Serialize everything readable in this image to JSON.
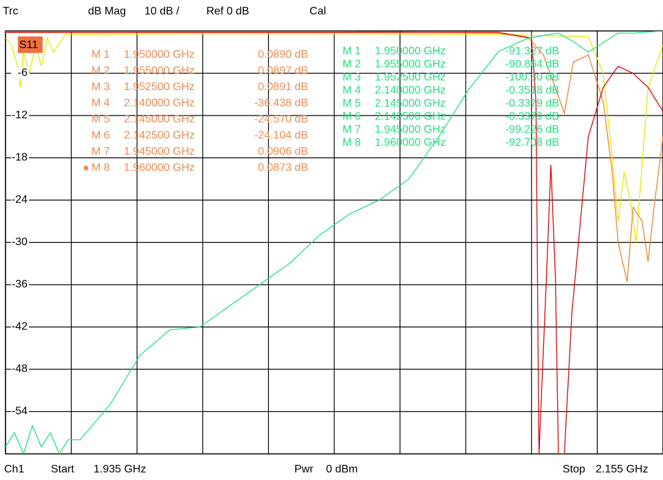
{
  "chart_data": {
    "type": "line",
    "header": [
      "Trc",
      "dB Mag",
      "10 dB /",
      "Ref 0 dB",
      "Cal"
    ],
    "trace_label": "S11",
    "footer": [
      "Ch1",
      "Start",
      "1.935 GHz",
      "Pwr",
      "0 dBm",
      "Stop",
      "2.155 GHz"
    ],
    "xlim": [
      1.935,
      2.155
    ],
    "xticks": [
      1.935,
      1.957,
      1.979,
      2.001,
      2.023,
      2.045,
      2.067,
      2.089,
      2.111,
      2.133,
      2.155
    ],
    "ylim": [
      -60,
      0
    ],
    "yticks": [
      -54,
      -48,
      -42,
      -36,
      -30,
      -24,
      -18,
      -12,
      -6
    ],
    "grid": true,
    "series": [
      {
        "color": "#e8e800",
        "x": [
          1.935,
          1.937,
          1.939,
          1.94,
          1.941,
          1.943,
          1.945,
          1.947,
          1.949,
          1.951,
          1.955,
          2.0,
          2.05,
          2.1,
          2.13,
          2.135,
          2.138,
          2.14,
          2.142,
          2.144,
          2.146,
          2.15,
          2.155
        ],
        "values": [
          -1,
          -2,
          -5,
          -8,
          -3,
          -6,
          -2,
          -5,
          -1,
          -3,
          -0.5,
          -0.4,
          -0.4,
          -0.5,
          -0.8,
          -6,
          -18,
          -27,
          -20,
          -24,
          -30,
          -8,
          -2
        ]
      },
      {
        "color": "#f08030",
        "x": [
          1.935,
          1.95,
          2.0,
          2.05,
          2.1,
          2.11,
          2.115,
          2.12,
          2.122,
          2.125,
          2.13,
          2.135,
          2.138,
          2.14,
          2.143,
          2.145,
          2.148,
          2.15,
          2.152,
          2.155
        ],
        "values": [
          -0.1,
          -0.1,
          -0.1,
          -0.1,
          -0.3,
          -1,
          -3.4,
          -9.3,
          -11.7,
          -4.4,
          -3.4,
          -10,
          -20,
          -30,
          -35.6,
          -25,
          -27,
          -32.7,
          -25,
          -15
        ]
      },
      {
        "color": "#e00000",
        "x": [
          1.935,
          2.0,
          2.1,
          2.111,
          2.1125,
          2.1135,
          2.116,
          2.1175,
          2.119,
          2.12,
          2.122,
          2.1245,
          2.13,
          2.135,
          2.14,
          2.145,
          2.15,
          2.155
        ],
        "values": [
          -0.2,
          -0.2,
          -0.2,
          -1,
          -10,
          -60,
          -35,
          -19,
          -35,
          -60,
          -60,
          -40,
          -15,
          -8,
          -5,
          -6,
          -8,
          -11.4
        ]
      },
      {
        "color": "#22e080",
        "x": [
          1.935,
          1.938,
          1.941,
          1.944,
          1.947,
          1.95,
          1.953,
          1.956,
          1.96,
          1.97,
          1.98,
          1.99,
          2.0,
          2.01,
          2.02,
          2.03,
          2.04,
          2.05,
          2.06,
          2.07,
          2.08,
          2.09,
          2.1,
          2.11,
          2.12,
          2.125,
          2.13,
          2.14,
          2.145,
          2.155
        ],
        "values": [
          -59,
          -57,
          -60,
          -56,
          -59,
          -57,
          -60,
          -58,
          -58,
          -53,
          -46,
          -42.4,
          -42,
          -39,
          -36,
          -33,
          -29,
          -26,
          -24,
          -21,
          -15,
          -8.3,
          -2.9,
          -1,
          -0.3,
          -1.5,
          -3,
          -0.3,
          -0.3,
          0
        ]
      }
    ],
    "marker_tables": [
      {
        "color": "#f08a50",
        "active_marker": 7,
        "rows": [
          [
            "M 1",
            "1.950000 GHz",
            "0.0890 dB"
          ],
          [
            "M 2",
            "1.955000 GHz",
            "0.0897 dB"
          ],
          [
            "M 3",
            "1.952500 GHz",
            "0.0891 dB"
          ],
          [
            "M 4",
            "2.140000 GHz",
            "-36.438 dB"
          ],
          [
            "M 5",
            "2.145000 GHz",
            "-24.570 dB"
          ],
          [
            "M 6",
            "2.142500 GHz",
            "-24.104 dB"
          ],
          [
            "M 7",
            "1.945000 GHz",
            "0.0906 dB"
          ],
          [
            "M 8",
            "1.960000 GHz",
            "0.0873 dB"
          ]
        ]
      },
      {
        "color": "#22e080",
        "rows": [
          [
            "M 1",
            "1.950000 GHz",
            "-91.327 dB"
          ],
          [
            "M 2",
            "1.955000 GHz",
            "-90.864 dB"
          ],
          [
            "M 3",
            "1.952500 GHz",
            "-100.30 dB"
          ],
          [
            "M 4",
            "2.140000 GHz",
            "-0.3518 dB"
          ],
          [
            "M 5",
            "2.145000 GHz",
            "-0.3379 dB"
          ],
          [
            "M 6",
            "2.142500 GHz",
            "-0.3379 dB"
          ],
          [
            "M 7",
            "1.945000 GHz",
            "-99.226 dB"
          ],
          [
            "M 8",
            "1.960000 GHz",
            "-92.708 dB"
          ]
        ]
      }
    ]
  }
}
